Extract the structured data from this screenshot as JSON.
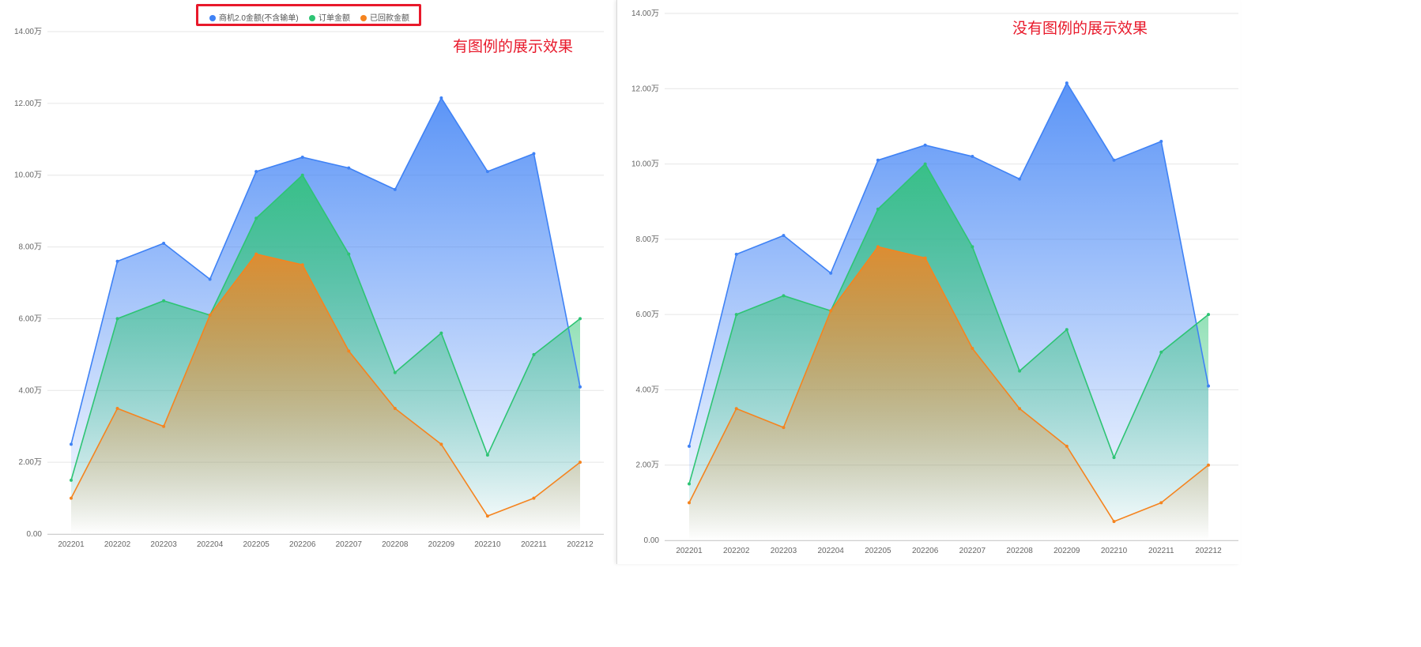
{
  "annotations": {
    "with_legend": "有图例的展示效果",
    "without_legend": "没有图例的展示效果"
  },
  "colors": {
    "series": [
      "#3f82f5",
      "#2ec474",
      "#f5841f"
    ],
    "grid": "#e6e6e6",
    "axis_text": "#666666",
    "caption": "#e8192b"
  },
  "chart_data": [
    {
      "type": "area",
      "legend": "top",
      "grid": true,
      "categories": [
        "202201",
        "202202",
        "202203",
        "202204",
        "202205",
        "202206",
        "202207",
        "202208",
        "202209",
        "202210",
        "202211",
        "202212"
      ],
      "y_ticks": [
        "0.00",
        "2.00万",
        "4.00万",
        "6.00万",
        "8.00万",
        "10.00万",
        "12.00万",
        "14.00万"
      ],
      "ylim": [
        0,
        14
      ],
      "series": [
        {
          "name": "商机2.0金额(不含输单)",
          "values": [
            2.5,
            7.6,
            8.1,
            7.1,
            10.1,
            10.5,
            10.2,
            9.6,
            12.15,
            10.1,
            10.6,
            4.1
          ]
        },
        {
          "name": "订单金额",
          "values": [
            1.5,
            6.0,
            6.5,
            6.1,
            8.8,
            10.0,
            7.8,
            4.5,
            5.6,
            2.2,
            5.0,
            6.0
          ]
        },
        {
          "name": "已回款金额",
          "values": [
            1.0,
            3.5,
            3.0,
            6.1,
            7.8,
            7.5,
            5.1,
            3.5,
            2.5,
            0.5,
            1.0,
            2.0
          ]
        }
      ]
    },
    {
      "type": "area",
      "legend": "none",
      "grid": true,
      "categories": [
        "202201",
        "202202",
        "202203",
        "202204",
        "202205",
        "202206",
        "202207",
        "202208",
        "202209",
        "202210",
        "202211",
        "202212"
      ],
      "y_ticks": [
        "0.00",
        "2.00万",
        "4.00万",
        "6.00万",
        "8.00万",
        "10.00万",
        "12.00万",
        "14.00万"
      ],
      "ylim": [
        0,
        14
      ],
      "series": [
        {
          "values": [
            2.5,
            7.6,
            8.1,
            7.1,
            10.1,
            10.5,
            10.2,
            9.6,
            12.15,
            10.1,
            10.6,
            4.1
          ]
        },
        {
          "values": [
            1.5,
            6.0,
            6.5,
            6.1,
            8.8,
            10.0,
            7.8,
            4.5,
            5.6,
            2.2,
            5.0,
            6.0
          ]
        },
        {
          "values": [
            1.0,
            3.5,
            3.0,
            6.1,
            7.8,
            7.5,
            5.1,
            3.5,
            2.5,
            0.5,
            1.0,
            2.0
          ]
        }
      ]
    }
  ]
}
